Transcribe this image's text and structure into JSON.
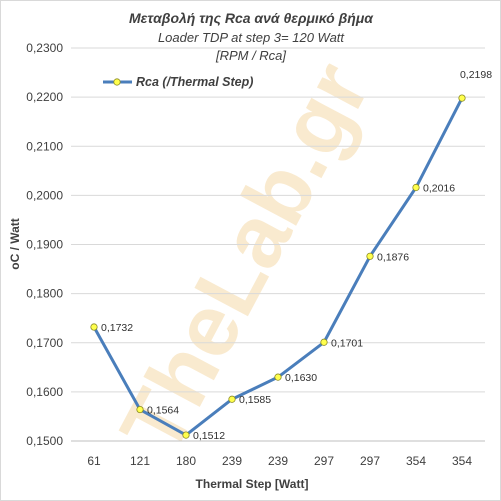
{
  "chart_data": {
    "type": "line",
    "title": "Μεταβολή της Rca ανά θερμικό βήμα",
    "subtitle_lines": [
      "Loader TDP at step 3= 120 Watt",
      "[RPM / Rca]"
    ],
    "xlabel": "Thermal Step [Watt]",
    "ylabel": "oC / Watt",
    "categories": [
      "61",
      "121",
      "180",
      "239",
      "239",
      "297",
      "297",
      "354",
      "354"
    ],
    "series": [
      {
        "name": "Rca (/Thermal Step)",
        "values": [
          0.1732,
          0.1564,
          0.1512,
          0.1585,
          0.163,
          0.1701,
          0.1876,
          0.2016,
          0.2198
        ],
        "labels": [
          "0,1732",
          "0,1564",
          "0,1512",
          "0,1585",
          "0,1630",
          "0,1701",
          "0,1876",
          "0,2016",
          "0,2198"
        ],
        "color": "#4a7ebb",
        "marker_color": "#ffff4d"
      }
    ],
    "ylim": [
      0.15,
      0.23
    ],
    "yticks": [
      "0,1500",
      "0,1600",
      "0,1700",
      "0,1800",
      "0,1900",
      "0,2000",
      "0,2100",
      "0,2200",
      "0,2300"
    ],
    "grid": true,
    "legend_position": "top-left"
  },
  "watermark": "TheLab.gr"
}
